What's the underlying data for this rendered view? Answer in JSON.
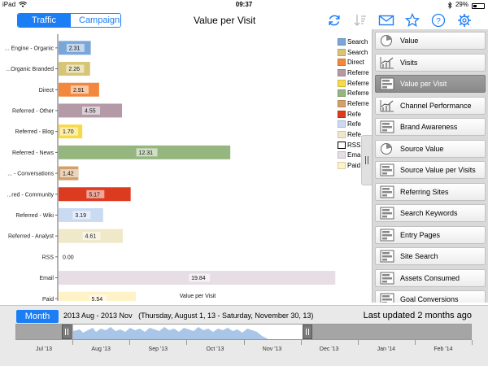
{
  "status": {
    "device": "iPad",
    "time": "09:37",
    "battery": "29%",
    "battery_level": 0.29
  },
  "toolbar": {
    "tabs": [
      {
        "label": "Traffic",
        "active": true
      },
      {
        "label": "Campaigns",
        "active": false
      }
    ],
    "title": "Value per Visit",
    "icons": [
      "refresh-icon",
      "sort-icon",
      "mail-icon",
      "star-icon",
      "help-icon",
      "gear-icon"
    ]
  },
  "chart_data": {
    "type": "bar",
    "orientation": "horizontal",
    "title": "",
    "xlabel": "Value per Visit",
    "ylabel": "",
    "xlim": [
      0,
      20
    ],
    "grid": false,
    "legend_placement": "right",
    "categories": [
      "... Engine - Organic",
      "...Organic Branded",
      "Direct",
      "Referred - Other",
      "Referred - Blog",
      "Referred - News",
      "... - Conversations",
      "...red - Community",
      "Referred - Wiki",
      "Referred - Analyst",
      "RSS",
      "Email",
      "Paid"
    ],
    "values": [
      2.31,
      2.26,
      2.91,
      4.55,
      1.7,
      12.31,
      1.42,
      5.17,
      3.19,
      4.61,
      0.0,
      19.84,
      5.54
    ],
    "value_labels": [
      "2.31",
      "2.26",
      "2.91",
      "4.55",
      "1.70",
      "12.31",
      "1.42",
      "5.17",
      "3.19",
      "4.61",
      "0.00",
      "19.84",
      "5.54"
    ],
    "colors": [
      "#7aa7d8",
      "#d6c574",
      "#f3883d",
      "#b49aa7",
      "#f7da4a",
      "#95b77f",
      "#d4a06a",
      "#dd3b1f",
      "#c9daf2",
      "#efe8c9",
      "#ffffff",
      "#e6dde5",
      "#fff2c6"
    ],
    "legend": [
      {
        "label": "Search",
        "color": "#7aa7d8"
      },
      {
        "label": "Search",
        "color": "#d6c574"
      },
      {
        "label": "Direct",
        "color": "#f3883d"
      },
      {
        "label": "Referre",
        "color": "#b49aa7"
      },
      {
        "label": "Referre",
        "color": "#f7da4a"
      },
      {
        "label": "Referre",
        "color": "#95b77f"
      },
      {
        "label": "Referre",
        "color": "#d4a06a"
      },
      {
        "label": "Refe",
        "color": "#dd3b1f"
      },
      {
        "label": "Refe",
        "color": "#c9daf2"
      },
      {
        "label": "Refe",
        "color": "#efe8c9"
      },
      {
        "label": "RSS",
        "color": "#ffffff"
      },
      {
        "label": "Ema",
        "color": "#e6dde5"
      },
      {
        "label": "Paid",
        "color": "#fff2c6"
      }
    ]
  },
  "reports": [
    {
      "label": "Value",
      "icon": "pie-chart-icon"
    },
    {
      "label": "Visits",
      "icon": "line-chart-icon"
    },
    {
      "label": "Value per Visit",
      "icon": "bar-chart-icon",
      "selected": true
    },
    {
      "label": "Channel Performance",
      "icon": "line-chart-icon"
    },
    {
      "label": "Brand Awareness",
      "icon": "bar-chart-icon"
    },
    {
      "label": "Source Value",
      "icon": "pie-chart-icon"
    },
    {
      "label": "Source Value per Visits",
      "icon": "bar-chart-icon"
    },
    {
      "label": "Referring Sites",
      "icon": "bar-chart-icon"
    },
    {
      "label": "Search Keywords",
      "icon": "bar-chart-icon"
    },
    {
      "label": "Entry Pages",
      "icon": "bar-chart-icon"
    },
    {
      "label": "Site Search",
      "icon": "bar-chart-icon"
    },
    {
      "label": "Assets Consumed",
      "icon": "bar-chart-icon"
    },
    {
      "label": "Goal Conversions",
      "icon": "bar-chart-icon"
    }
  ],
  "bottom": {
    "period_button": "Month",
    "range_text": "2013 Aug - 2013 Nov",
    "range_detail": "(Thursday, August 1, 13 - Saturday, November 30, 13)",
    "updated": "Last updated 2 months ago",
    "timeline_months": [
      "Jul '13",
      "Aug '13",
      "Sep '13",
      "Oct '13",
      "Nov '13",
      "Dec '13",
      "Jan '14",
      "Feb '14"
    ]
  }
}
